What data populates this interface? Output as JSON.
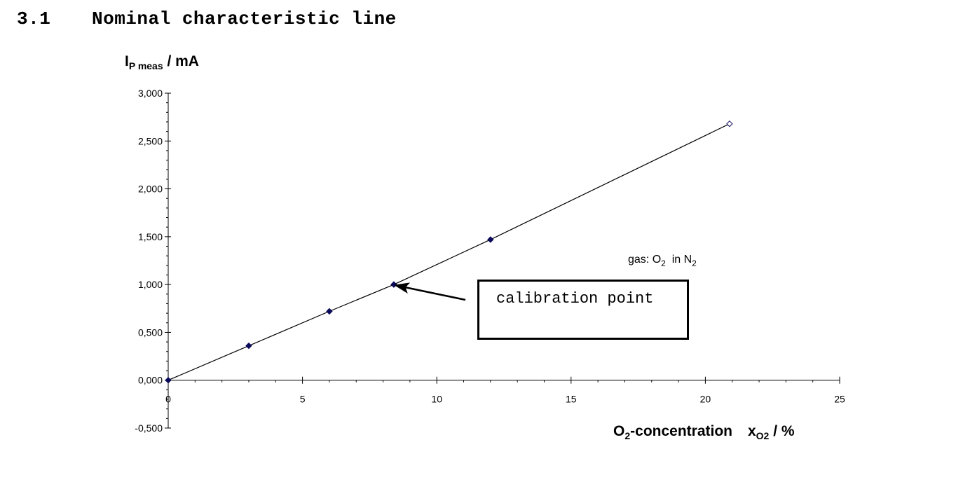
{
  "heading": {
    "number": "3.1",
    "title": "Nominal characteristic line"
  },
  "chart_data": {
    "type": "line",
    "ylabel": {
      "main": "I",
      "sub": "P meas",
      "unit": " / mA"
    },
    "xlabel": {
      "pre": "O",
      "sub1": "2",
      "mid": "-concentration",
      "var": "x",
      "sub2": "O2",
      "unit": " / %"
    },
    "xlim": [
      0,
      25
    ],
    "ylim": [
      -0.5,
      3.0
    ],
    "x_ticks": [
      0,
      5,
      10,
      15,
      20,
      25
    ],
    "x_tick_labels": [
      "0",
      "5",
      "10",
      "15",
      "20",
      "25"
    ],
    "y_ticks": [
      -0.5,
      0,
      0.5,
      1.0,
      1.5,
      2.0,
      2.5,
      3.0
    ],
    "y_tick_labels": [
      "-0,500",
      "0,000",
      "0,500",
      "1,000",
      "1,500",
      "2,000",
      "2,500",
      "3,000"
    ],
    "grid": false,
    "series": [
      {
        "x": [
          0,
          3,
          6,
          8.4,
          12,
          20.9
        ],
        "y": [
          0,
          0.36,
          0.72,
          1.0,
          1.47,
          2.68
        ],
        "marker_filled": [
          true,
          true,
          true,
          true,
          true,
          false
        ],
        "color": "#0a0a5a"
      }
    ],
    "annotations": {
      "gas_note": {
        "prefix": "gas: O",
        "o2_sub": "2",
        "middle": "  in N",
        "n2_sub": "2"
      },
      "callout": {
        "text": "calibration point",
        "points_to": {
          "x": 8.4,
          "y": 1.0
        }
      }
    }
  }
}
